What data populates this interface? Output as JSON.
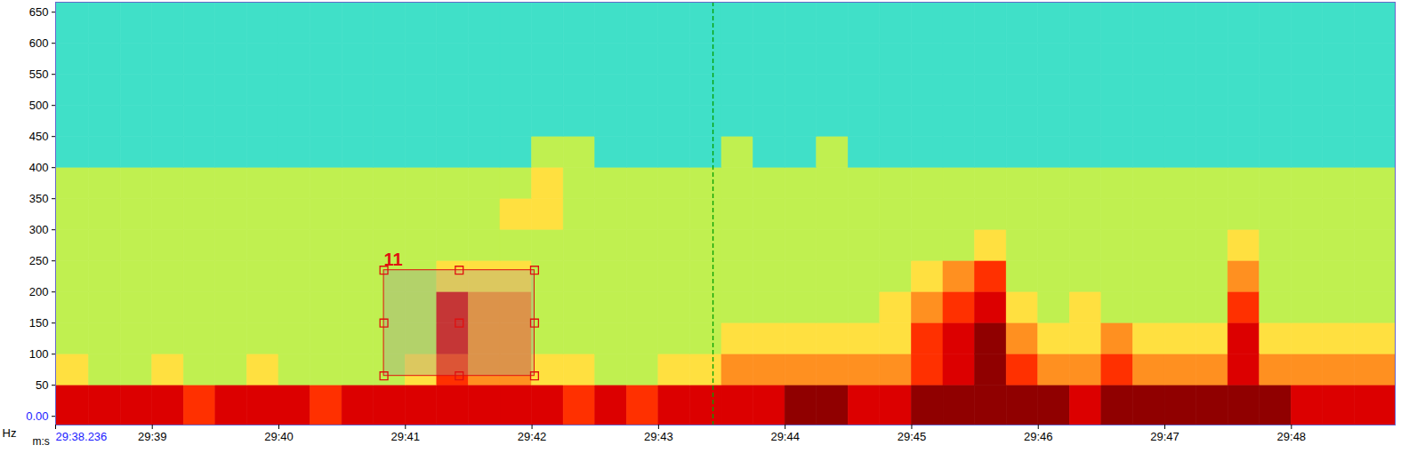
{
  "chart_data": {
    "type": "heatmap",
    "x_label": "m:s",
    "y_label": "Hz",
    "xlim": [
      1778.236,
      1788.82
    ],
    "ylim": [
      -14,
      666
    ],
    "xticks": [
      {
        "value": 1778.236,
        "label": "29:38.236"
      },
      {
        "value": 1779,
        "label": "29:39"
      },
      {
        "value": 1780,
        "label": "29:40"
      },
      {
        "value": 1781,
        "label": "29:41"
      },
      {
        "value": 1782,
        "label": "29:42"
      },
      {
        "value": 1783,
        "label": "29:43"
      },
      {
        "value": 1784,
        "label": "29:44"
      },
      {
        "value": 1785,
        "label": "29:45"
      },
      {
        "value": 1786,
        "label": "29:46"
      },
      {
        "value": 1787,
        "label": "29:47"
      },
      {
        "value": 1788,
        "label": "29:48"
      }
    ],
    "yticks": [
      {
        "value": 0,
        "label": "0.00"
      },
      50,
      100,
      150,
      200,
      250,
      300,
      350,
      400,
      450,
      500,
      550,
      600,
      650
    ],
    "grid": false,
    "time_edges": [
      1778.236,
      1778.5,
      1778.75,
      1779,
      1779.25,
      1779.5,
      1779.75,
      1780,
      1780.25,
      1780.5,
      1780.75,
      1781,
      1781.25,
      1781.5,
      1781.75,
      1782,
      1782.25,
      1782.5,
      1782.75,
      1783,
      1783.25,
      1783.5,
      1783.75,
      1784,
      1784.25,
      1784.5,
      1784.75,
      1785,
      1785.25,
      1785.5,
      1785.75,
      1786,
      1786.25,
      1786.5,
      1786.75,
      1787,
      1787.25,
      1787.5,
      1787.75,
      1788,
      1788.25,
      1788.5,
      1788.82
    ],
    "freq_edges": [
      -14,
      50,
      100,
      150,
      200,
      250,
      300,
      350,
      400,
      450,
      500,
      550,
      600,
      666
    ],
    "zlim": [
      0,
      10
    ],
    "cells": [
      [
        9,
        9,
        9,
        9,
        8,
        9,
        9,
        9,
        8,
        9,
        9,
        9,
        9,
        9,
        9,
        9,
        8,
        9,
        8,
        9,
        9,
        9,
        9,
        10,
        10,
        9,
        9,
        10,
        10,
        10,
        10,
        10,
        9,
        10,
        10,
        10,
        10,
        10,
        10,
        9,
        9,
        9
      ],
      [
        6,
        5,
        5,
        6,
        5,
        5,
        6,
        5,
        5,
        5,
        5,
        6,
        8,
        7,
        7,
        6,
        6,
        5,
        5,
        6,
        6,
        7,
        7,
        7,
        7,
        7,
        7,
        8,
        9,
        10,
        8,
        7,
        7,
        8,
        7,
        7,
        7,
        9,
        7,
        7,
        7,
        7
      ],
      [
        5,
        5,
        5,
        5,
        5,
        5,
        5,
        5,
        5,
        5,
        5,
        5,
        9,
        7,
        7,
        5,
        5,
        5,
        5,
        5,
        5,
        6,
        6,
        6,
        6,
        6,
        6,
        8,
        9,
        10,
        7,
        6,
        6,
        7,
        6,
        6,
        6,
        9,
        6,
        6,
        6,
        6
      ],
      [
        5,
        5,
        5,
        5,
        5,
        5,
        5,
        5,
        5,
        5,
        5,
        5,
        9,
        7,
        7,
        5,
        5,
        5,
        5,
        5,
        5,
        5,
        5,
        5,
        5,
        5,
        6,
        7,
        8,
        9,
        6,
        5,
        6,
        5,
        5,
        5,
        5,
        8,
        5,
        5,
        5,
        5
      ],
      [
        5,
        5,
        5,
        5,
        5,
        5,
        5,
        5,
        5,
        5,
        5,
        5,
        6,
        6,
        6,
        5,
        5,
        5,
        5,
        5,
        5,
        5,
        5,
        5,
        5,
        5,
        5,
        6,
        7,
        8,
        5,
        5,
        5,
        5,
        5,
        5,
        5,
        7,
        5,
        5,
        5,
        5
      ],
      [
        5,
        5,
        5,
        5,
        5,
        5,
        5,
        5,
        5,
        5,
        5,
        5,
        5,
        5,
        5,
        5,
        5,
        5,
        5,
        5,
        5,
        5,
        5,
        5,
        5,
        5,
        5,
        5,
        5,
        6,
        5,
        5,
        5,
        5,
        5,
        5,
        5,
        6,
        5,
        5,
        5,
        5
      ],
      [
        5,
        5,
        5,
        5,
        5,
        5,
        5,
        5,
        5,
        5,
        5,
        5,
        5,
        5,
        6,
        6,
        5,
        5,
        5,
        5,
        5,
        5,
        5,
        5,
        5,
        5,
        5,
        5,
        5,
        5,
        5,
        5,
        5,
        5,
        5,
        5,
        5,
        5,
        5,
        5,
        5,
        5
      ],
      [
        5,
        5,
        5,
        5,
        5,
        5,
        5,
        5,
        5,
        5,
        5,
        5,
        5,
        5,
        5,
        6,
        5,
        5,
        5,
        5,
        5,
        5,
        5,
        5,
        5,
        5,
        5,
        5,
        5,
        5,
        5,
        5,
        5,
        5,
        5,
        5,
        5,
        5,
        5,
        5,
        5,
        5
      ],
      [
        4,
        4,
        4,
        4,
        4,
        4,
        4,
        4,
        4,
        4,
        4,
        4,
        4,
        4,
        4,
        5,
        5,
        4,
        4,
        4,
        4,
        5,
        4,
        4,
        5,
        4,
        4,
        4,
        4,
        4,
        4,
        4,
        4,
        4,
        4,
        4,
        4,
        4,
        4,
        4,
        4,
        4
      ],
      [
        4,
        4,
        4,
        4,
        4,
        4,
        4,
        4,
        4,
        4,
        4,
        4,
        4,
        4,
        4,
        4,
        4,
        4,
        4,
        4,
        4,
        4,
        4,
        4,
        4,
        4,
        4,
        4,
        4,
        4,
        4,
        4,
        4,
        4,
        4,
        4,
        4,
        4,
        4,
        4,
        4,
        4
      ],
      [
        4,
        4,
        4,
        4,
        4,
        4,
        4,
        4,
        4,
        4,
        4,
        4,
        4,
        4,
        4,
        4,
        4,
        4,
        4,
        4,
        4,
        4,
        4,
        4,
        4,
        4,
        4,
        4,
        4,
        4,
        4,
        4,
        4,
        4,
        4,
        4,
        4,
        4,
        4,
        4,
        4,
        4
      ],
      [
        4,
        4,
        4,
        4,
        4,
        4,
        4,
        4,
        4,
        4,
        4,
        4,
        4,
        4,
        4,
        4,
        4,
        4,
        4,
        4,
        4,
        4,
        4,
        4,
        4,
        4,
        4,
        4,
        4,
        4,
        4,
        4,
        4,
        4,
        4,
        4,
        4,
        4,
        4,
        4,
        4,
        4
      ],
      [
        4,
        4,
        4,
        4,
        4,
        4,
        4,
        4,
        4,
        4,
        4,
        4,
        4,
        4,
        4,
        4,
        4,
        4,
        4,
        4,
        4,
        4,
        4,
        4,
        4,
        4,
        4,
        4,
        4,
        4,
        4,
        4,
        4,
        4,
        4,
        4,
        4,
        4,
        4,
        4,
        4,
        4
      ]
    ],
    "selection": {
      "label": "11",
      "x": [
        1780.83,
        1782.02
      ],
      "y": [
        65,
        235
      ],
      "color": "#e01010"
    },
    "cursor": {
      "x": 1783.43,
      "color": "#00a000",
      "line_style": "dashed"
    }
  }
}
